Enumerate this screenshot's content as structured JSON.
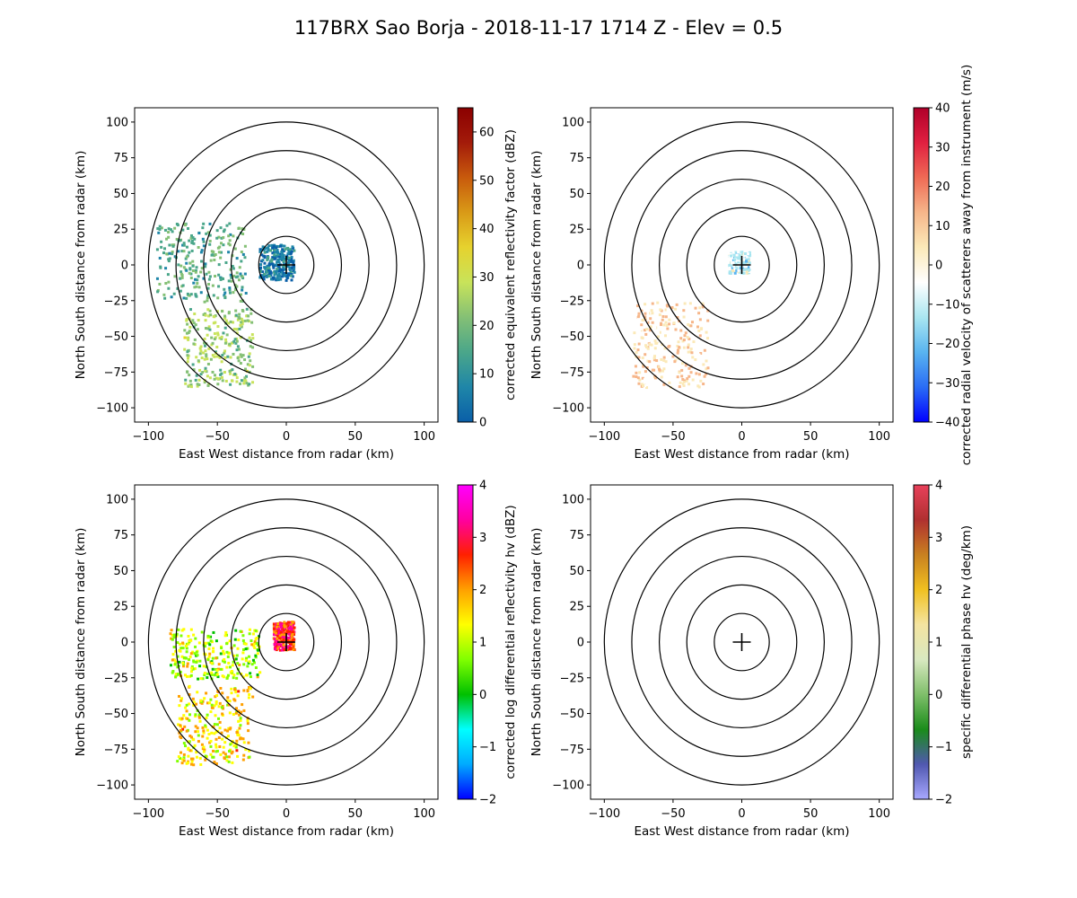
{
  "figure": {
    "title": "117BRX Sao Borja - 2018-11-17 1714 Z -  Elev = 0.5"
  },
  "chart_data": [
    {
      "type": "heatmap",
      "id": "reflectivity",
      "xlabel": "East West distance from radar (km)",
      "ylabel": "North South distance from radar (km)",
      "xlim": [
        -110,
        110
      ],
      "ylim": [
        -110,
        110
      ],
      "xticks": [
        "−100",
        "−50",
        "0",
        "50",
        "100"
      ],
      "yticks": [
        "100",
        "75",
        "50",
        "25",
        "0",
        "−25",
        "−50",
        "−75",
        "−100"
      ],
      "range_rings_km": [
        20,
        40,
        60,
        80,
        100
      ],
      "colorbar": {
        "label": "corrected equivalent reflectivity factor (dBZ)",
        "range": [
          0,
          65
        ],
        "ticks": [
          "60",
          "50",
          "40",
          "30",
          "20",
          "10",
          "0"
        ],
        "colors": [
          "#0a5fa8",
          "#1f86a8",
          "#4aa68a",
          "#84c075",
          "#c8e35a",
          "#e6d22e",
          "#d99a17",
          "#c85a0c",
          "#a31b0a",
          "#8b0000"
        ]
      },
      "echo_regions": [
        {
          "description": "near-radar cluster",
          "x_km": [
            -20,
            5
          ],
          "y_km": [
            -10,
            15
          ],
          "value": 8
        },
        {
          "description": "west band",
          "x_km": [
            -95,
            -30
          ],
          "y_km": [
            -25,
            30
          ],
          "value": 18
        },
        {
          "description": "southwest line",
          "x_km": [
            -75,
            -25
          ],
          "y_km": [
            -85,
            -30
          ],
          "value": 25
        }
      ]
    },
    {
      "type": "heatmap",
      "id": "velocity",
      "xlabel": "East West distance from radar (km)",
      "ylabel": "North South distance from radar (km)",
      "xlim": [
        -110,
        110
      ],
      "ylim": [
        -110,
        110
      ],
      "xticks": [
        "−100",
        "−50",
        "0",
        "50",
        "100"
      ],
      "yticks": [
        "100",
        "75",
        "50",
        "25",
        "0",
        "−25",
        "−50",
        "−75",
        "−100"
      ],
      "range_rings_km": [
        20,
        40,
        60,
        80,
        100
      ],
      "colorbar": {
        "label": "corrected radial velocity of scatterers away from instrument (m/s)",
        "range": [
          -40,
          40
        ],
        "ticks": [
          "40",
          "30",
          "20",
          "10",
          "0",
          "−10",
          "−20",
          "−30",
          "−40"
        ],
        "colors": [
          "#0000ff",
          "#2a6cf5",
          "#59b4f0",
          "#a9e6f0",
          "#ffffff",
          "#fbe9b8",
          "#f6b68a",
          "#ef6a55",
          "#e02040",
          "#b0002a"
        ]
      },
      "echo_regions": [
        {
          "description": "near-radar cluster",
          "x_km": [
            -10,
            5
          ],
          "y_km": [
            -5,
            10
          ],
          "value": -8
        },
        {
          "description": "southwest line",
          "x_km": [
            -80,
            -25
          ],
          "y_km": [
            -85,
            -25
          ],
          "value": 6
        }
      ]
    },
    {
      "type": "heatmap",
      "id": "zdr",
      "xlabel": "East West distance from radar (km)",
      "ylabel": "North South distance from radar (km)",
      "xlim": [
        -110,
        110
      ],
      "ylim": [
        -110,
        110
      ],
      "xticks": [
        "−100",
        "−50",
        "0",
        "50",
        "100"
      ],
      "yticks": [
        "100",
        "75",
        "50",
        "25",
        "0",
        "−25",
        "−50",
        "−75",
        "−100"
      ],
      "range_rings_km": [
        20,
        40,
        60,
        80,
        100
      ],
      "colorbar": {
        "label": "corrected log differential reflectivity hv (dBZ)",
        "range": [
          -2,
          4
        ],
        "ticks": [
          "4",
          "3",
          "2",
          "1",
          "0",
          "−1",
          "−2"
        ],
        "colors": [
          "#0000ff",
          "#00aaff",
          "#00ffff",
          "#00c000",
          "#80ff00",
          "#ffff00",
          "#ffa000",
          "#ff2000",
          "#ff00a0",
          "#ff00ff"
        ]
      },
      "echo_regions": [
        {
          "description": "near-radar cluster",
          "x_km": [
            -10,
            5
          ],
          "y_km": [
            -5,
            15
          ],
          "value": 2.5
        },
        {
          "description": "west band",
          "x_km": [
            -85,
            -20
          ],
          "y_km": [
            -25,
            10
          ],
          "value": 1.0
        },
        {
          "description": "southwest line",
          "x_km": [
            -80,
            -25
          ],
          "y_km": [
            -85,
            -30
          ],
          "value": 1.5
        }
      ]
    },
    {
      "type": "heatmap",
      "id": "kdp",
      "xlabel": "East West distance from radar (km)",
      "ylabel": "North South distance from radar (km)",
      "xlim": [
        -110,
        110
      ],
      "ylim": [
        -110,
        110
      ],
      "xticks": [
        "−100",
        "−50",
        "0",
        "50",
        "100"
      ],
      "yticks": [
        "100",
        "75",
        "50",
        "25",
        "0",
        "−25",
        "−50",
        "−75",
        "−100"
      ],
      "range_rings_km": [
        20,
        40,
        60,
        80,
        100
      ],
      "colorbar": {
        "label": "specific differential phase hv (deg/km)",
        "range": [
          -2,
          4
        ],
        "ticks": [
          "4",
          "3",
          "2",
          "1",
          "0",
          "−1",
          "−2"
        ],
        "colors": [
          "#a8a8ff",
          "#5058b0",
          "#1a8c1a",
          "#7fbf6a",
          "#d8e8c0",
          "#f4e4a0",
          "#f0c020",
          "#c88020",
          "#b03030",
          "#e8405a"
        ]
      },
      "echo_regions": []
    }
  ]
}
